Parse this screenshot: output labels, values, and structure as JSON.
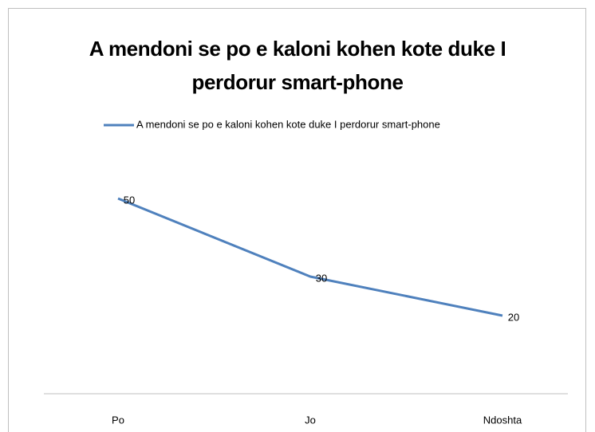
{
  "chart_data": {
    "type": "line",
    "title": "A mendoni se po e kaloni kohen kote duke I perdorur smart-phone",
    "categories": [
      "Po",
      "Jo",
      "Ndoshta"
    ],
    "series": [
      {
        "name": "A mendoni se po e kaloni kohen kote duke I perdorur smart-phone",
        "color": "#4f81bd",
        "values": [
          50,
          30,
          20
        ]
      }
    ],
    "ylim": [
      0,
      60
    ],
    "legend": "top"
  }
}
